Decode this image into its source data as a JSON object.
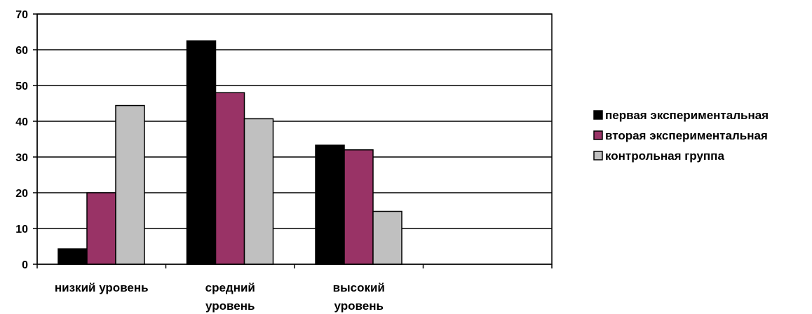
{
  "chart_data": {
    "type": "bar",
    "categories": [
      [
        "низкий уровень"
      ],
      [
        "средний",
        "уровень"
      ],
      [
        "высокий",
        "уровень"
      ],
      [
        ""
      ]
    ],
    "series": [
      {
        "name": "первая экспериментальная",
        "color": "#000000",
        "values": [
          4.3,
          62.5,
          33.3,
          null
        ]
      },
      {
        "name": "вторая экспериментальная",
        "color": "#993366",
        "values": [
          20,
          48,
          32,
          null
        ]
      },
      {
        "name": "контрольная группа",
        "color": "#c0c0c0",
        "values": [
          44.4,
          40.7,
          14.8,
          null
        ]
      }
    ],
    "ylim": [
      0,
      70
    ],
    "yticks": [
      0,
      10,
      20,
      30,
      40,
      50,
      60,
      70
    ],
    "grid": true,
    "legend_position": "right",
    "title": "",
    "xlabel": "",
    "ylabel": ""
  }
}
